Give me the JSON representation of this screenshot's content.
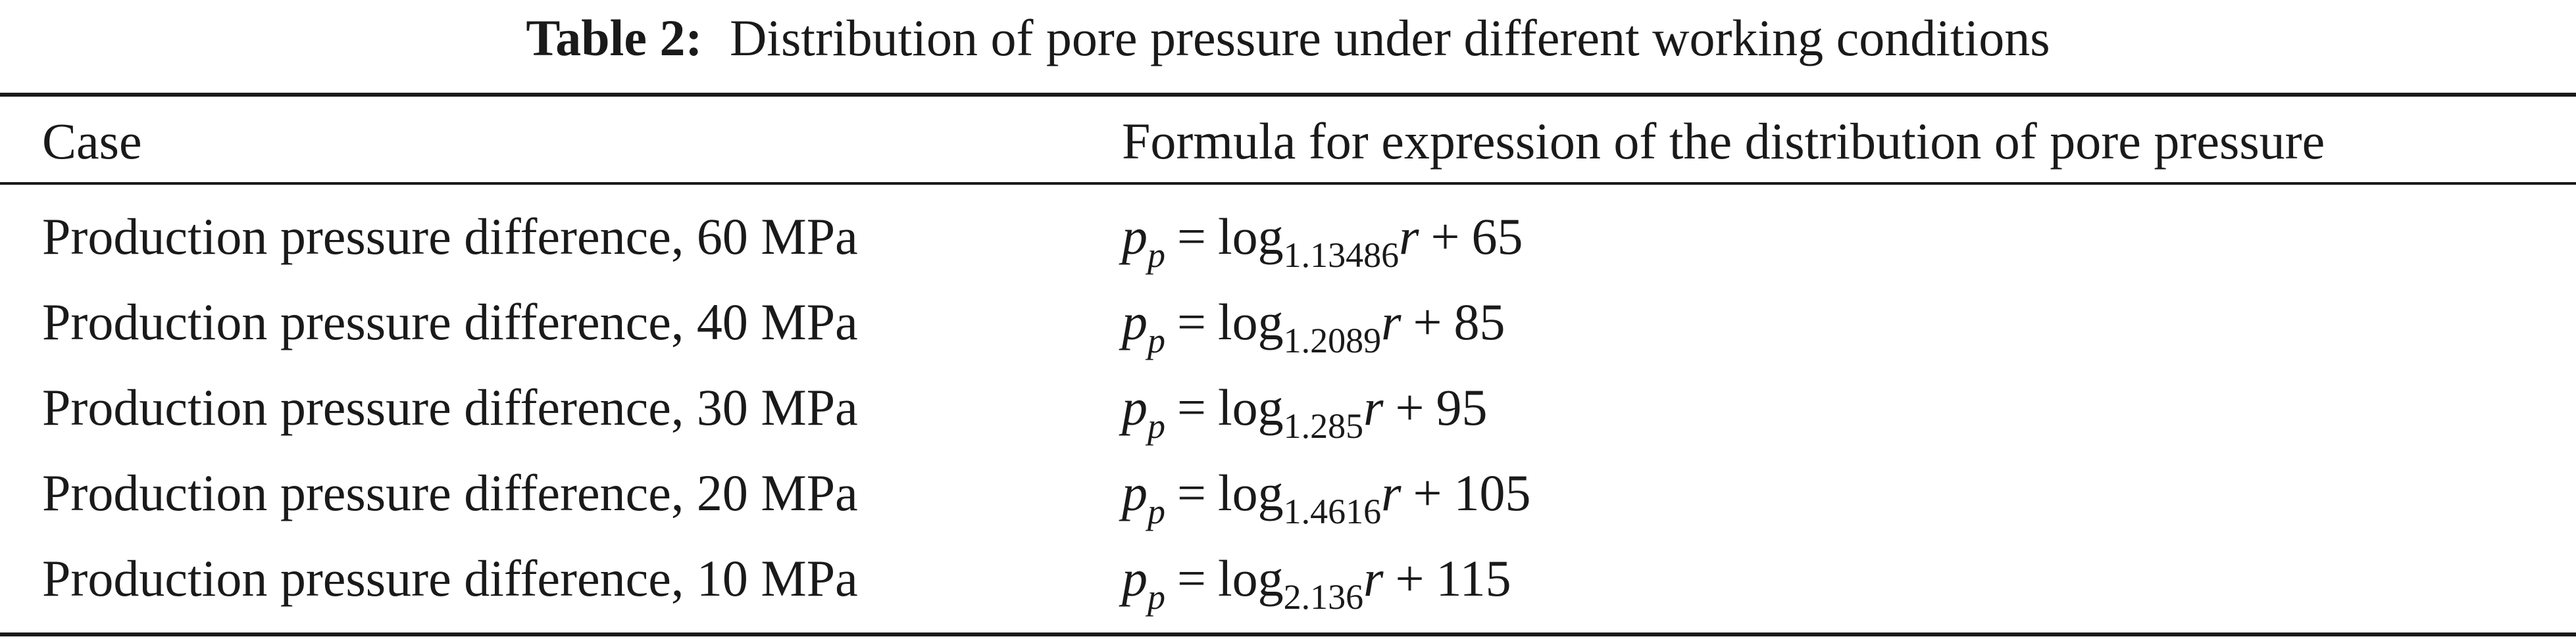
{
  "caption": {
    "label": "Table 2:",
    "text": "Distribution of pore pressure under different working conditions"
  },
  "table": {
    "headers": {
      "case": "Case",
      "formula": "Formula for expression of the distribution of pore pressure"
    },
    "rows": [
      {
        "case": "Production pressure difference, 60 MPa",
        "var": "p",
        "var_sub": "p",
        "eq": "=",
        "log": "log",
        "base": "1.13486",
        "arg": "r",
        "plus": "+",
        "const": "65"
      },
      {
        "case": "Production pressure difference, 40 MPa",
        "var": "p",
        "var_sub": "p",
        "eq": "=",
        "log": "log",
        "base": "1.2089",
        "arg": "r",
        "plus": "+",
        "const": "85"
      },
      {
        "case": "Production pressure difference, 30 MPa",
        "var": "p",
        "var_sub": "p",
        "eq": "=",
        "log": "log",
        "base": "1.285",
        "arg": "r",
        "plus": "+",
        "const": "95"
      },
      {
        "case": "Production pressure difference, 20 MPa",
        "var": "p",
        "var_sub": "p",
        "eq": "=",
        "log": "log",
        "base": "1.4616",
        "arg": "r",
        "plus": "+",
        "const": "105"
      },
      {
        "case": "Production pressure difference, 10 MPa",
        "var": "p",
        "var_sub": "p",
        "eq": "=",
        "log": "log",
        "base": "2.136",
        "arg": "r",
        "plus": "+",
        "const": "115"
      }
    ]
  }
}
